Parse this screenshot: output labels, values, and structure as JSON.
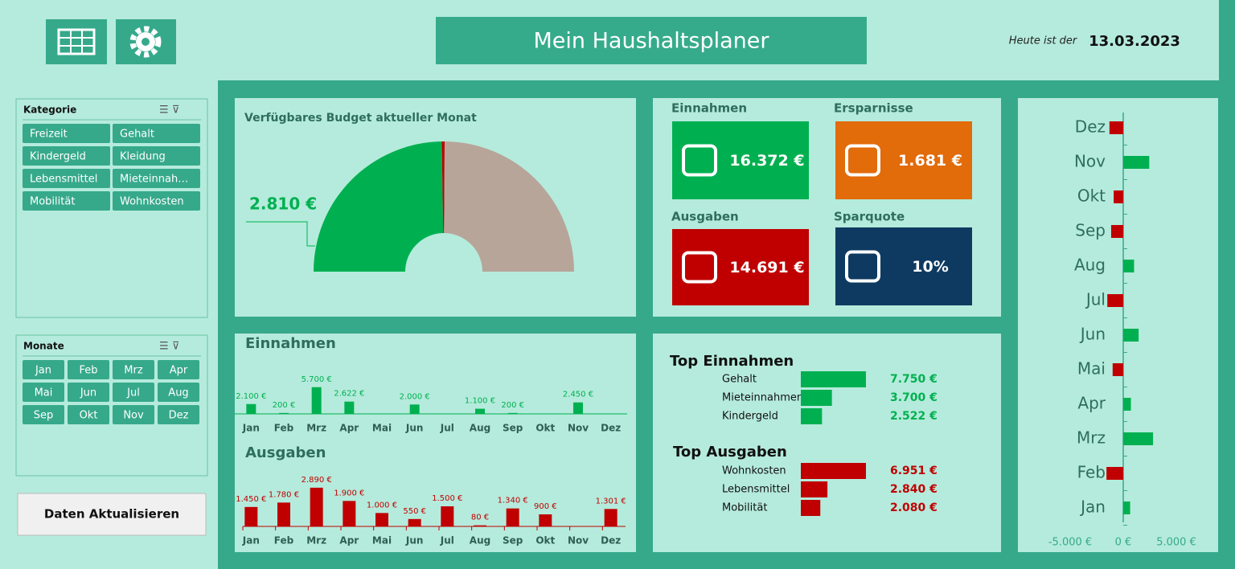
{
  "header": {
    "title": "Mein Haushaltsplaner",
    "date_label": "Heute ist der",
    "date": "13.03.2023"
  },
  "slicers": [
    {
      "title": "Kategorie",
      "columns": 2,
      "items": [
        "Freizeit",
        "Gehalt",
        "Kindergeld",
        "Kleidung",
        "Lebensmittel",
        "Mieteinnah…",
        "Mobilität",
        "Wohnkosten"
      ]
    },
    {
      "title": "Monate",
      "columns": 4,
      "items": [
        "Jan",
        "Feb",
        "Mrz",
        "Apr",
        "Mai",
        "Jun",
        "Jul",
        "Aug",
        "Sep",
        "Okt",
        "Nov",
        "Dez"
      ]
    }
  ],
  "button": "Daten Aktualisieren",
  "kpis": [
    {
      "label": "Einnahmen",
      "value": "16.372 €",
      "color": "#00b050"
    },
    {
      "label": "Ersparnisse",
      "value": "1.681 €",
      "color": "#e26b0a"
    },
    {
      "label": "Ausgaben",
      "value": "14.691 €",
      "color": "#c00000"
    },
    {
      "label": "Sparquote",
      "value": "10%",
      "color": "#0e3a61"
    }
  ],
  "chart_data": [
    {
      "type": "gauge",
      "title": "Verfügbares Budget aktueller Monat",
      "label": "2.810 €",
      "values": [
        49.5,
        0.7,
        49.8
      ],
      "colors": [
        "#00b050",
        "#c00000",
        "#b8a59a"
      ]
    },
    {
      "type": "bar",
      "title": "Einnahmen",
      "color": "#00b050",
      "categories": [
        "Jan",
        "Feb",
        "Mrz",
        "Apr",
        "Mai",
        "Jun",
        "Jul",
        "Aug",
        "Sep",
        "Okt",
        "Nov",
        "Dez"
      ],
      "values": [
        2100,
        200,
        5700,
        2622,
        null,
        2000,
        null,
        1100,
        200,
        null,
        2450,
        null
      ],
      "value_labels": [
        "2.100 €",
        "200 €",
        "5.700 €",
        "2.622 €",
        null,
        "2.000 €",
        null,
        "1.100 €",
        "200 €",
        null,
        "2.450 €",
        null
      ],
      "ylim": [
        0,
        6000
      ]
    },
    {
      "type": "bar",
      "title": "Ausgaben",
      "color": "#c00000",
      "categories": [
        "Jan",
        "Feb",
        "Mrz",
        "Apr",
        "Mai",
        "Jun",
        "Jul",
        "Aug",
        "Sep",
        "Okt",
        "Nov",
        "Dez"
      ],
      "values": [
        1450,
        1780,
        2890,
        1900,
        1000,
        550,
        1500,
        80,
        1340,
        900,
        null,
        1301
      ],
      "value_labels": [
        "1.450 €",
        "1.780 €",
        "2.890 €",
        "1.900 €",
        "1.000 €",
        "550 €",
        "1.500 €",
        "80 €",
        "1.340 €",
        "900 €",
        null,
        "1.301 €"
      ],
      "ylim": [
        0,
        3000
      ]
    },
    {
      "type": "hbar",
      "title": "Top Einnahmen",
      "color": "#00b050",
      "categories": [
        "Gehalt",
        "Mieteinnahmen",
        "Kindergeld"
      ],
      "values": [
        7750,
        3700,
        2522
      ],
      "value_labels": [
        "7.750 €",
        "3.700 €",
        "2.522 €"
      ],
      "xlim": [
        0,
        7750
      ]
    },
    {
      "type": "hbar",
      "title": "Top Ausgaben",
      "color": "#c00000",
      "categories": [
        "Wohnkosten",
        "Lebensmittel",
        "Mobilität"
      ],
      "values": [
        6951,
        2840,
        2080
      ],
      "value_labels": [
        "6.951 €",
        "2.840 €",
        "2.080 €"
      ],
      "xlim": [
        0,
        6951
      ]
    },
    {
      "type": "diverging",
      "colors": {
        "positive": "#00b050",
        "negative": "#c00000"
      },
      "categories": [
        "Jan",
        "Feb",
        "Mrz",
        "Apr",
        "Mai",
        "Jun",
        "Jul",
        "Aug",
        "Sep",
        "Okt",
        "Nov",
        "Dez"
      ],
      "values": [
        650,
        -1580,
        2810,
        722,
        -1000,
        1450,
        -1500,
        1020,
        -1140,
        -900,
        2450,
        -1301
      ],
      "xlim": [
        -8000,
        8000
      ],
      "xticks": [
        {
          "value": -5000,
          "label": "-5.000 €"
        },
        {
          "value": 0,
          "label": "0 €"
        },
        {
          "value": 5000,
          "label": "5.000 €"
        }
      ]
    }
  ]
}
